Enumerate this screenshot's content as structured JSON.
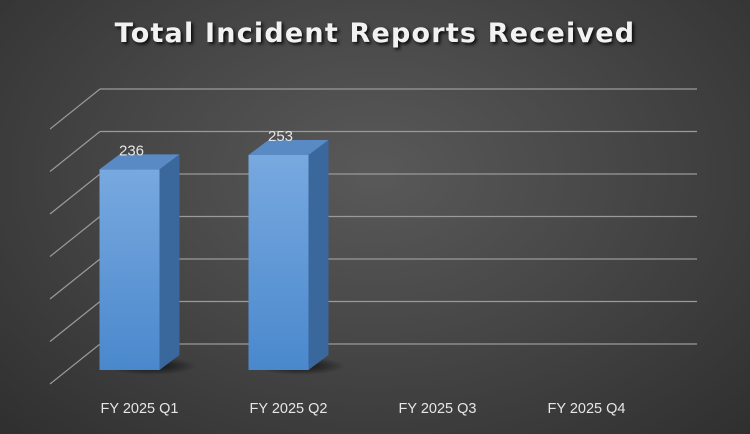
{
  "chart_data": {
    "type": "bar",
    "title": "Total Incident Reports Received",
    "categories": [
      "FY 2025 Q1",
      "FY 2025 Q2",
      "FY 2025 Q3",
      "FY 2025 Q4"
    ],
    "values": [
      236,
      253,
      null,
      null
    ],
    "data_labels": [
      "236",
      "253",
      "",
      ""
    ],
    "xlabel": "",
    "ylabel": "",
    "ylim": [
      0,
      300
    ],
    "grid": true,
    "legend": "none",
    "style": "3d-column",
    "colors": {
      "bar_front_top": "#78a9df",
      "bar_front_bottom": "#4a88cd",
      "bar_side": "#3a679c",
      "bar_top": "#5a8ac4",
      "gridline": "#9a9a9a",
      "text": "#e6e6e6",
      "title": "#f2f2f2"
    }
  }
}
